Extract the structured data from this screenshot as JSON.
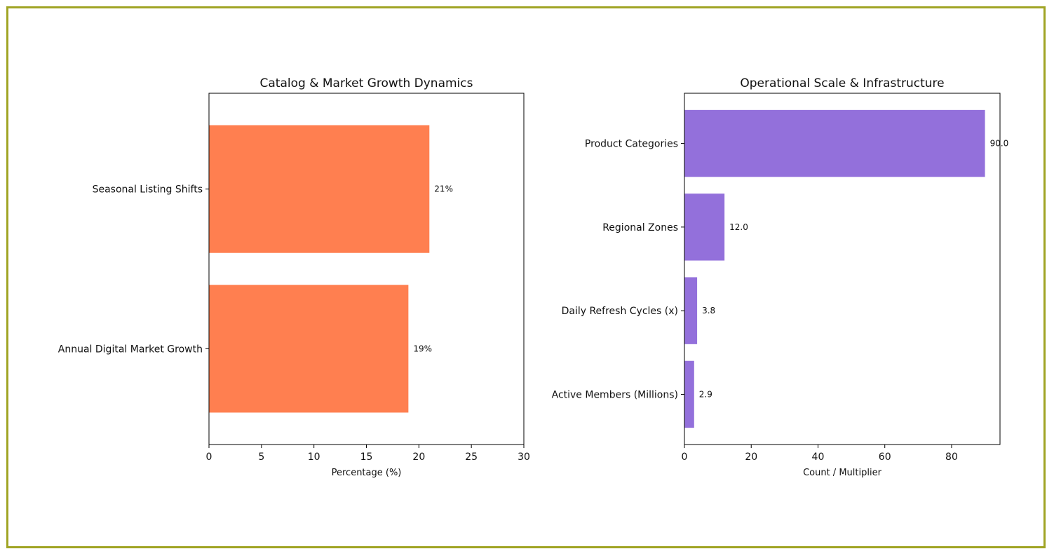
{
  "frame_color": "#a0a424",
  "chart_data": [
    {
      "type": "bar",
      "orientation": "horizontal",
      "title": "Catalog & Market Growth Dynamics",
      "xlabel": "Percentage (%)",
      "ylabel": "",
      "categories": [
        "Seasonal Listing Shifts",
        "Annual Digital Market Growth"
      ],
      "values": [
        21,
        19
      ],
      "data_labels": [
        "21%",
        "19%"
      ],
      "xlim": [
        0,
        30
      ],
      "xticks": [
        0,
        5,
        10,
        15,
        20,
        25,
        30
      ],
      "color": "#ff7f50",
      "grid": false
    },
    {
      "type": "bar",
      "orientation": "horizontal",
      "title": "Operational Scale & Infrastructure",
      "xlabel": "Count / Multiplier",
      "ylabel": "",
      "categories": [
        "Product Categories",
        "Regional Zones",
        "Daily Refresh Cycles (x)",
        "Active Members (Millions)"
      ],
      "values": [
        90.0,
        12.0,
        3.8,
        2.9
      ],
      "data_labels": [
        "90.0",
        "12.0",
        "3.8",
        "2.9"
      ],
      "xlim": [
        0,
        94.5
      ],
      "xticks": [
        0,
        20,
        40,
        60,
        80
      ],
      "color": "#9370db",
      "grid": false
    }
  ]
}
